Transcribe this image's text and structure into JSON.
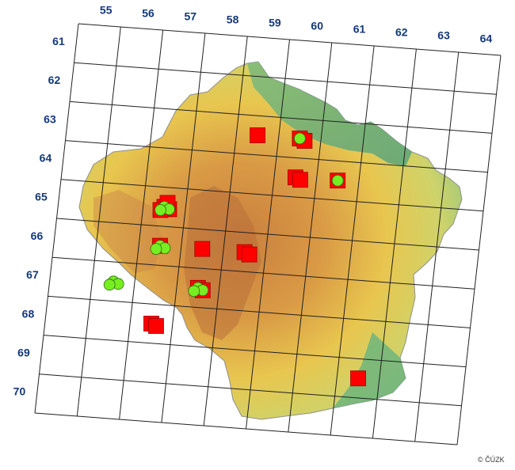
{
  "map": {
    "col_labels": [
      "55",
      "56",
      "57",
      "58",
      "59",
      "60",
      "61",
      "62",
      "63",
      "64"
    ],
    "row_labels": [
      "61",
      "62",
      "63",
      "64",
      "65",
      "66",
      "67",
      "68",
      "69",
      "70"
    ],
    "credit": "© ČÚZK",
    "colors": {
      "grid": "#202020",
      "label": "#14387a",
      "square_marker": "#ff0000",
      "circle_marker": "#77ee22",
      "lowland": "#6cae73",
      "upland": "#e8c64f",
      "highland": "#c97e3e"
    },
    "legend_items": [],
    "square_records": [
      {
        "col": 59,
        "row": 63
      },
      {
        "col": 60,
        "row": 63
      },
      {
        "col": 60,
        "row": 63
      },
      {
        "col": 60,
        "row": 64
      },
      {
        "col": 60,
        "row": 64
      },
      {
        "col": 61,
        "row": 64
      },
      {
        "col": 57,
        "row": 65
      },
      {
        "col": 57,
        "row": 65
      },
      {
        "col": 57,
        "row": 65
      },
      {
        "col": 57,
        "row": 65
      },
      {
        "col": 59,
        "row": 66
      },
      {
        "col": 57,
        "row": 66
      },
      {
        "col": 58,
        "row": 66
      },
      {
        "col": 59,
        "row": 66
      },
      {
        "col": 58,
        "row": 67
      },
      {
        "col": 58,
        "row": 67
      },
      {
        "col": 57,
        "row": 68
      },
      {
        "col": 57,
        "row": 68
      },
      {
        "col": 62,
        "row": 69
      }
    ],
    "circle_records": [
      {
        "col": 60,
        "row": 63
      },
      {
        "col": 61,
        "row": 64
      },
      {
        "col": 57,
        "row": 65
      },
      {
        "col": 57,
        "row": 65
      },
      {
        "col": 57,
        "row": 65
      },
      {
        "col": 57,
        "row": 66
      },
      {
        "col": 57,
        "row": 66
      },
      {
        "col": 57,
        "row": 66
      },
      {
        "col": 58,
        "row": 67
      },
      {
        "col": 58,
        "row": 67
      },
      {
        "col": 58,
        "row": 67
      },
      {
        "col": 56,
        "row": 67
      },
      {
        "col": 56,
        "row": 67
      },
      {
        "col": 56,
        "row": 67
      }
    ]
  }
}
